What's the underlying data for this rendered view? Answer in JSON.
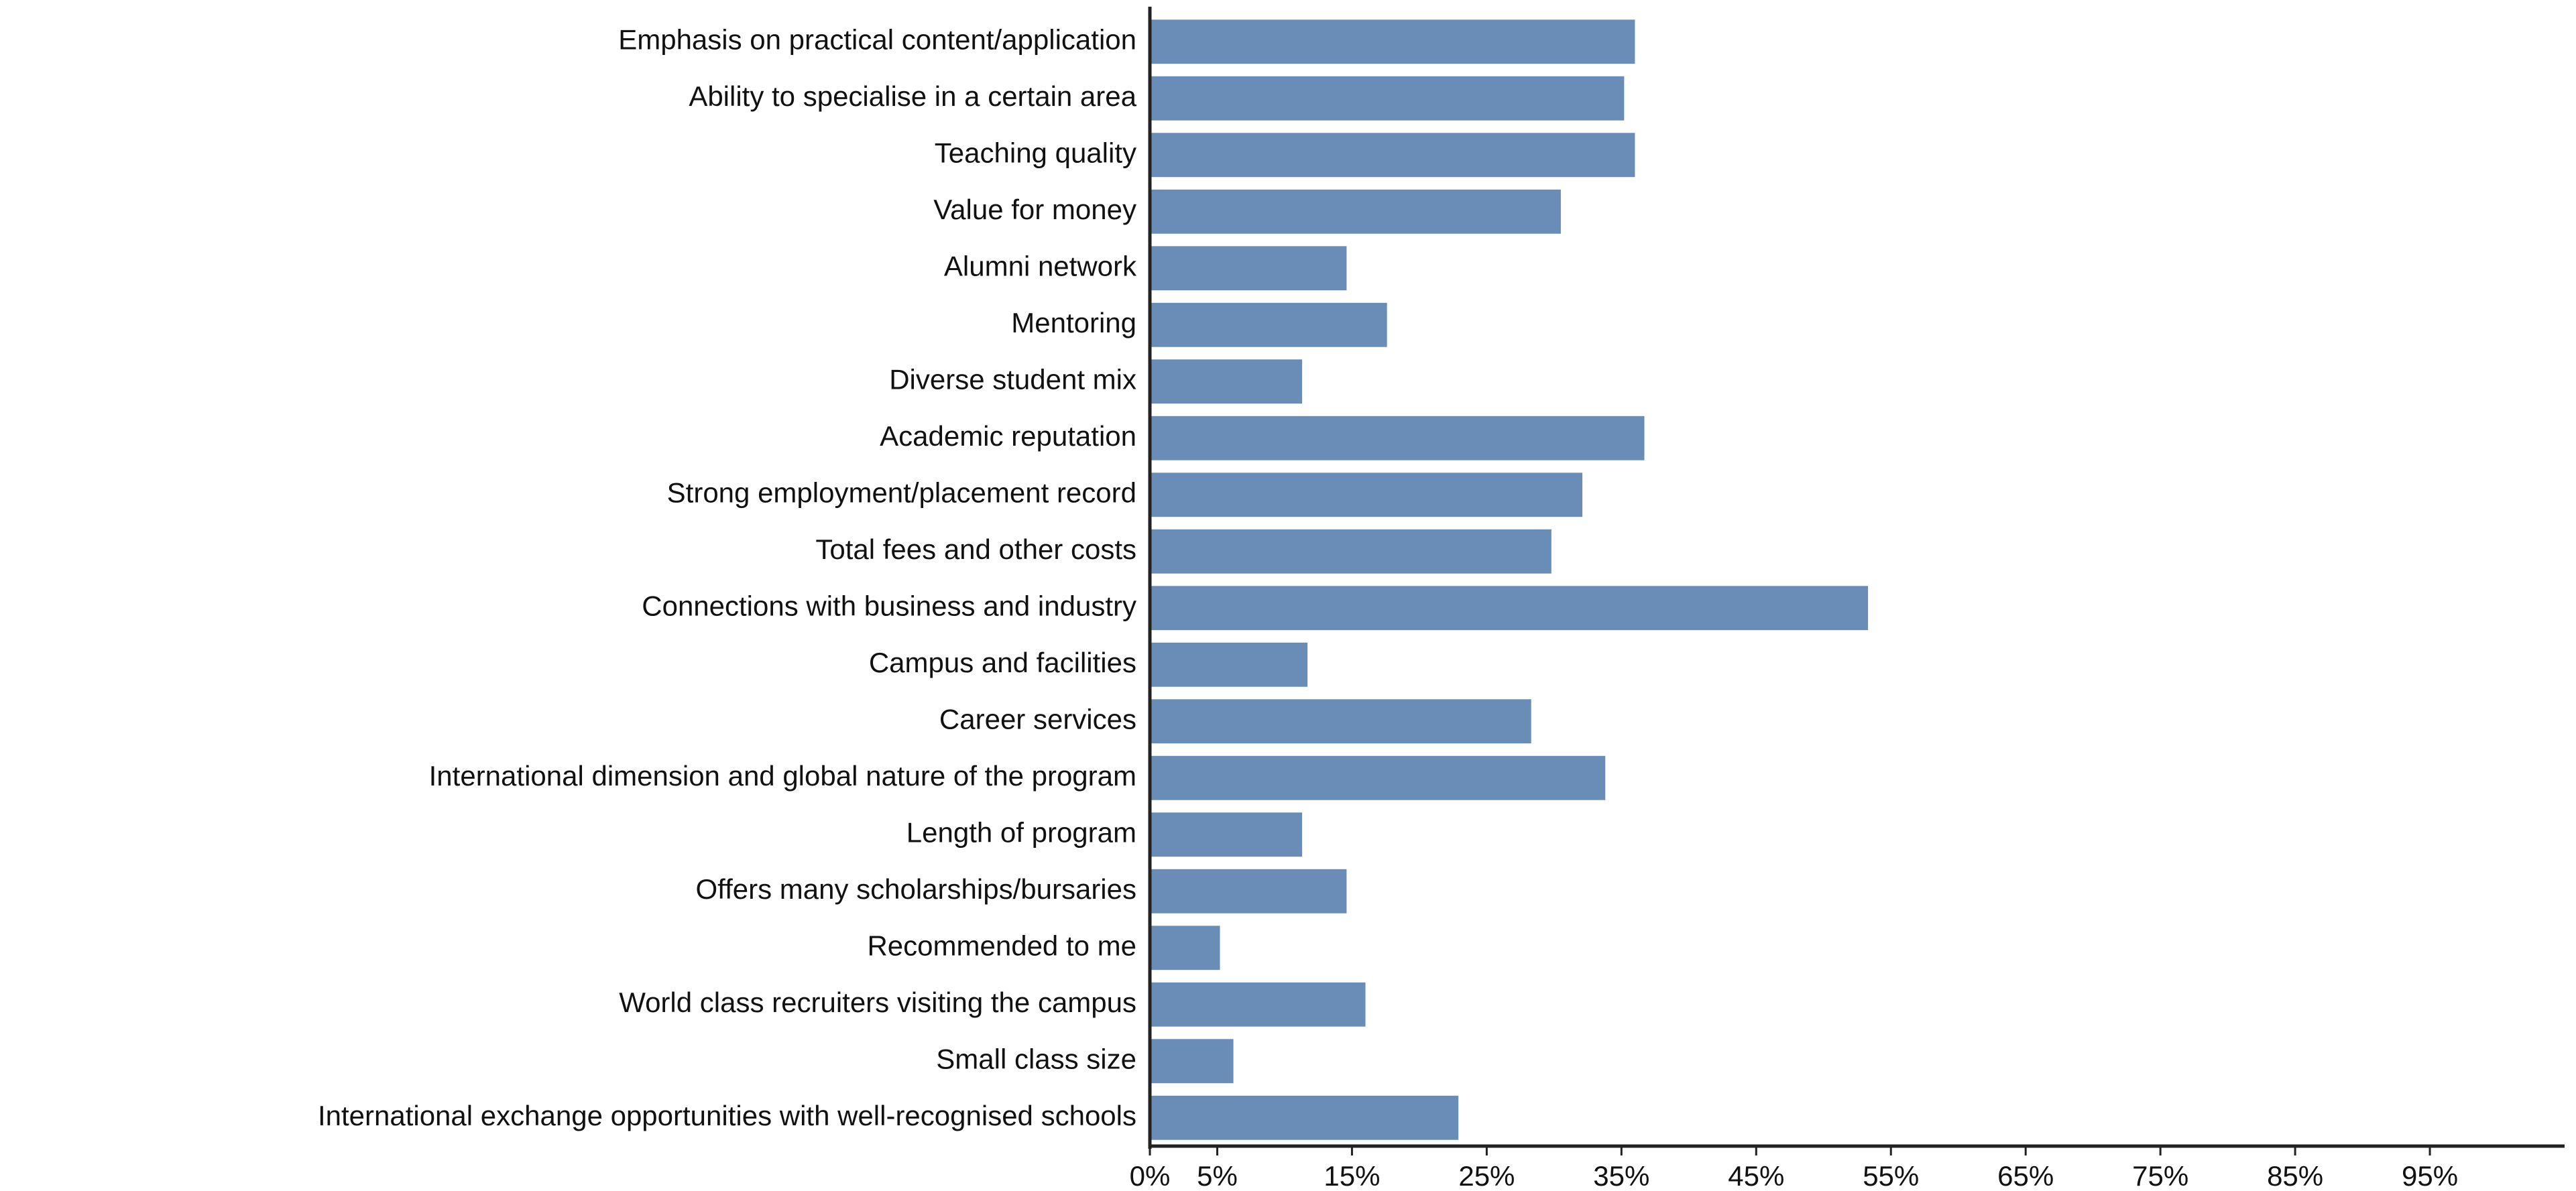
{
  "chart_data": {
    "type": "barh",
    "categories": [
      "Emphasis on practical content/application",
      "Ability to specialise in a certain area",
      "Teaching quality",
      "Value for money",
      "Alumni network",
      "Mentoring",
      "Diverse student mix",
      "Academic reputation",
      "Strong employment/placement record",
      "Total fees and other costs",
      "Connections with business and industry",
      "Campus and facilities",
      "Career services",
      "International dimension and global nature of the program",
      "Length of program",
      "Offers many scholarships/bursaries",
      "Recommended to me",
      "World class recruiters visiting the campus",
      "Small class size",
      "International exchange opportunities with well-recognised schools"
    ],
    "values": [
      36.0,
      35.2,
      36.0,
      30.5,
      14.6,
      17.6,
      11.3,
      36.7,
      32.1,
      29.8,
      53.3,
      11.7,
      28.3,
      33.8,
      11.3,
      14.6,
      5.2,
      16.0,
      6.2,
      22.9
    ],
    "color": "#6a8db8",
    "xlim": [
      0,
      105
    ],
    "xticks": [
      {
        "value": 0,
        "label": "0%"
      },
      {
        "value": 5,
        "label": "5%"
      },
      {
        "value": 15,
        "label": "15%"
      },
      {
        "value": 25,
        "label": "25%"
      },
      {
        "value": 35,
        "label": "35%"
      },
      {
        "value": 45,
        "label": "45%"
      },
      {
        "value": 55,
        "label": "55%"
      },
      {
        "value": 65,
        "label": "65%"
      },
      {
        "value": 75,
        "label": "75%"
      },
      {
        "value": 85,
        "label": "85%"
      },
      {
        "value": 95,
        "label": "95%"
      }
    ],
    "grid": false
  }
}
